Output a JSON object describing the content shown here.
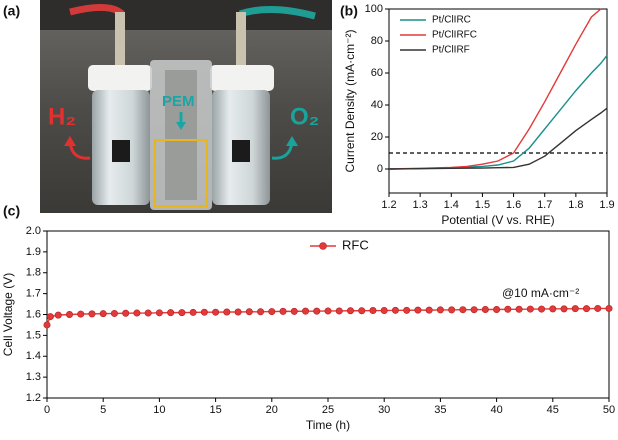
{
  "photo": {
    "label": "(a)",
    "h2": "H₂",
    "pem": "PEM",
    "o2": "O₂"
  },
  "chart_data": [
    {
      "type": "line",
      "label": "(b)",
      "x_label": "Potential (V vs. RHE)",
      "y_label": "Current Density (mA·cm⁻²)",
      "x": [
        1.2,
        1.3,
        1.4,
        1.45,
        1.5,
        1.55,
        1.6,
        1.65,
        1.7,
        1.75,
        1.8,
        1.85,
        1.88,
        1.9
      ],
      "series": [
        {
          "name": "Pt/ClIRC",
          "color": "#1a8f8c",
          "values": [
            0,
            0.3,
            0.8,
            1.2,
            1.6,
            2.5,
            5,
            13,
            25,
            37,
            49,
            60,
            66,
            71
          ]
        },
        {
          "name": "Pt/ClIRFC",
          "color": "#e23a3a",
          "values": [
            0,
            0.4,
            1,
            1.6,
            3,
            5,
            10,
            25,
            42,
            60,
            78,
            95,
            100,
            null
          ]
        },
        {
          "name": "Pt/ClIRF",
          "color": "#333333",
          "values": [
            0,
            0.2,
            0.4,
            0.5,
            0.6,
            0.8,
            1,
            3,
            8,
            16,
            24,
            31,
            35,
            38
          ]
        }
      ],
      "xlim": [
        1.2,
        1.9
      ],
      "ylim": [
        -15,
        100
      ],
      "xticks": [
        1.2,
        1.3,
        1.4,
        1.5,
        1.6,
        1.7,
        1.8,
        1.9
      ],
      "yticks": [
        0,
        20,
        40,
        60,
        80,
        100
      ],
      "hline": 10,
      "legend": "upper left"
    },
    {
      "type": "line",
      "label": "(c)",
      "x_label": "Time (h)",
      "y_label": "Cell Voltage (V)",
      "annotation": "@10 mA·cm⁻²",
      "markers": true,
      "x": [
        0,
        0.3,
        1,
        2,
        3,
        4,
        5,
        6,
        7,
        8,
        9,
        10,
        11,
        12,
        13,
        14,
        15,
        16,
        17,
        18,
        19,
        20,
        21,
        22,
        23,
        24,
        25,
        26,
        27,
        28,
        29,
        30,
        31,
        32,
        33,
        34,
        35,
        36,
        37,
        38,
        39,
        40,
        41,
        42,
        43,
        44,
        45,
        46,
        47,
        48,
        49,
        50
      ],
      "series": [
        {
          "name": "RFC",
          "color": "#e23a3a",
          "values": [
            1.55,
            1.59,
            1.597,
            1.6,
            1.602,
            1.603,
            1.604,
            1.605,
            1.606,
            1.607,
            1.607,
            1.608,
            1.609,
            1.609,
            1.61,
            1.611,
            1.611,
            1.612,
            1.612,
            1.613,
            1.613,
            1.614,
            1.615,
            1.615,
            1.616,
            1.616,
            1.617,
            1.617,
            1.618,
            1.618,
            1.619,
            1.619,
            1.62,
            1.62,
            1.621,
            1.621,
            1.622,
            1.622,
            1.623,
            1.623,
            1.624,
            1.624,
            1.625,
            1.625,
            1.626,
            1.626,
            1.627,
            1.627,
            1.628,
            1.628,
            1.629,
            1.629
          ]
        }
      ],
      "xlim": [
        0,
        50
      ],
      "ylim": [
        1.2,
        2
      ],
      "xticks": [
        0,
        5,
        10,
        15,
        20,
        25,
        30,
        35,
        40,
        45,
        50
      ],
      "yticks": [
        1.2,
        1.3,
        1.4,
        1.5,
        1.6,
        1.7,
        1.8,
        1.9,
        {
          "value": 2,
          "label": "2.0"
        }
      ],
      "legend": "upper center"
    }
  ]
}
